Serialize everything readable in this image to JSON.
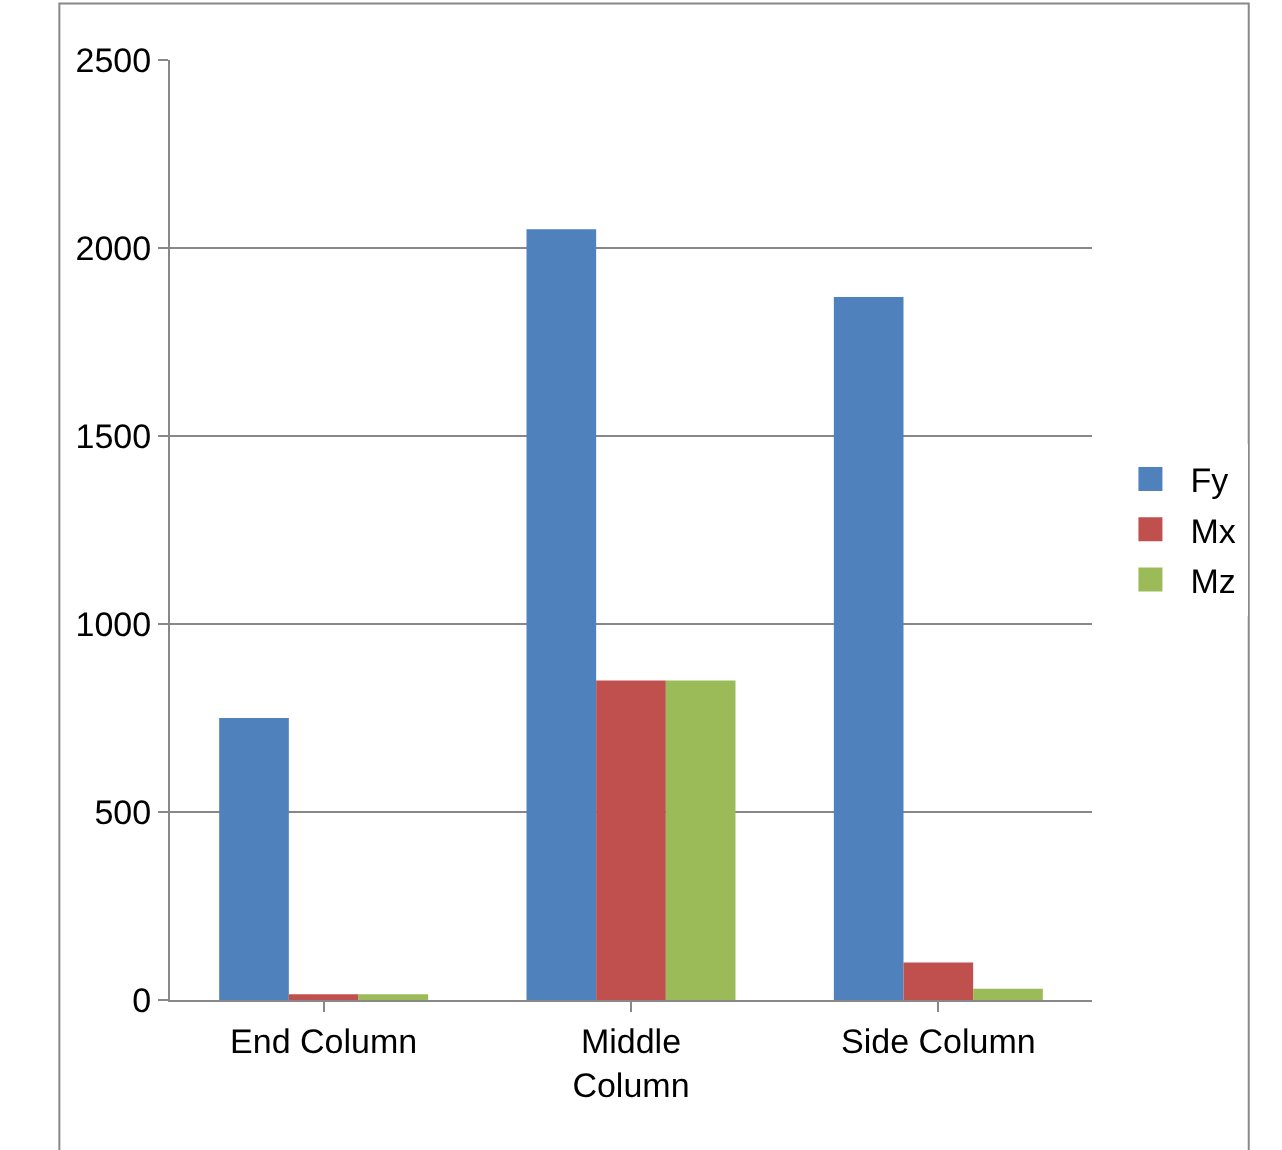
{
  "chart_data": {
    "type": "bar",
    "categories": [
      "End Column",
      "Middle\nColumn",
      "Side Column"
    ],
    "series": [
      {
        "name": "Fy",
        "color": "#4f81bd",
        "values": [
          750,
          2050,
          1870
        ]
      },
      {
        "name": "Mx",
        "color": "#c0504d",
        "values": [
          15,
          850,
          100
        ]
      },
      {
        "name": "Mz",
        "color": "#9bbb59",
        "values": [
          15,
          850,
          30
        ]
      }
    ],
    "ylim": [
      0,
      2500
    ],
    "yticks": [
      0,
      500,
      1000,
      1500,
      2000,
      2500
    ],
    "grid": "y",
    "legend": "right"
  }
}
